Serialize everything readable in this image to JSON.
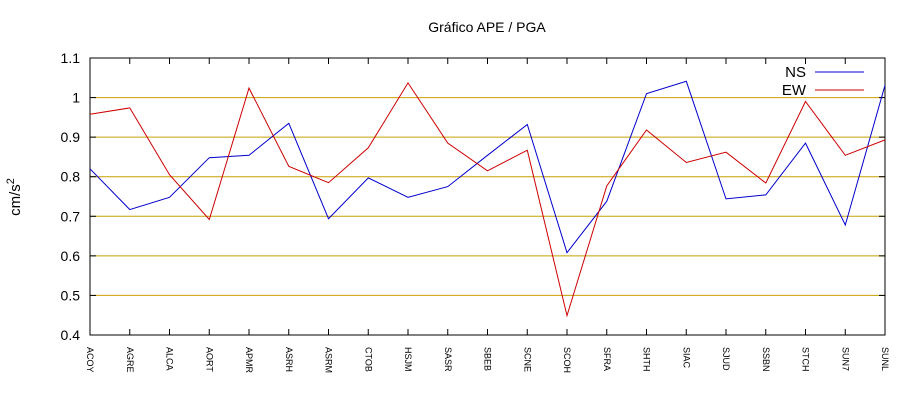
{
  "chart_data": {
    "type": "line",
    "title": "Gráfico  APE / PGA",
    "ylabel": "cm/s²",
    "ylabel_base": "cm/s",
    "ylabel_sup": "2",
    "xlabel": "",
    "ylim": [
      0.4,
      1.1
    ],
    "yticks": [
      0.4,
      0.5,
      0.6,
      0.7,
      0.8,
      0.9,
      1,
      1.1
    ],
    "ytick_labels": [
      "0.4",
      "0.5",
      "0.6",
      "0.7",
      "0.8",
      "0.9",
      "1",
      "1.1"
    ],
    "grid": "horizontal",
    "legend_position": "top-right",
    "categories": [
      "ACOY",
      "AGRE",
      "ALCA",
      "AORT",
      "APMR",
      "ASRH",
      "ASRM",
      "CTOB",
      "HSJM",
      "SASR",
      "SBEB",
      "SCNE",
      "SCOH",
      "SFRA",
      "SHTH",
      "SIAC",
      "SJUD",
      "SSBN",
      "STCH",
      "SUN7",
      "SUNL"
    ],
    "series": [
      {
        "name": "NS",
        "color": "#0000cc",
        "values": [
          0.82,
          0.717,
          0.748,
          0.848,
          0.854,
          0.935,
          0.694,
          0.797,
          0.748,
          0.775,
          0.854,
          0.932,
          0.608,
          0.738,
          1.01,
          1.041,
          0.744,
          0.754,
          0.885,
          0.678,
          1.031
        ]
      },
      {
        "name": "EW",
        "color": "#cc0000",
        "values": [
          0.958,
          0.974,
          0.805,
          0.692,
          1.024,
          0.826,
          0.785,
          0.873,
          1.037,
          0.885,
          0.815,
          0.867,
          0.449,
          0.777,
          0.918,
          0.836,
          0.862,
          0.784,
          0.99,
          0.854,
          0.893
        ]
      }
    ],
    "grid_color": "#c8a000",
    "axis_color": "#000000"
  }
}
